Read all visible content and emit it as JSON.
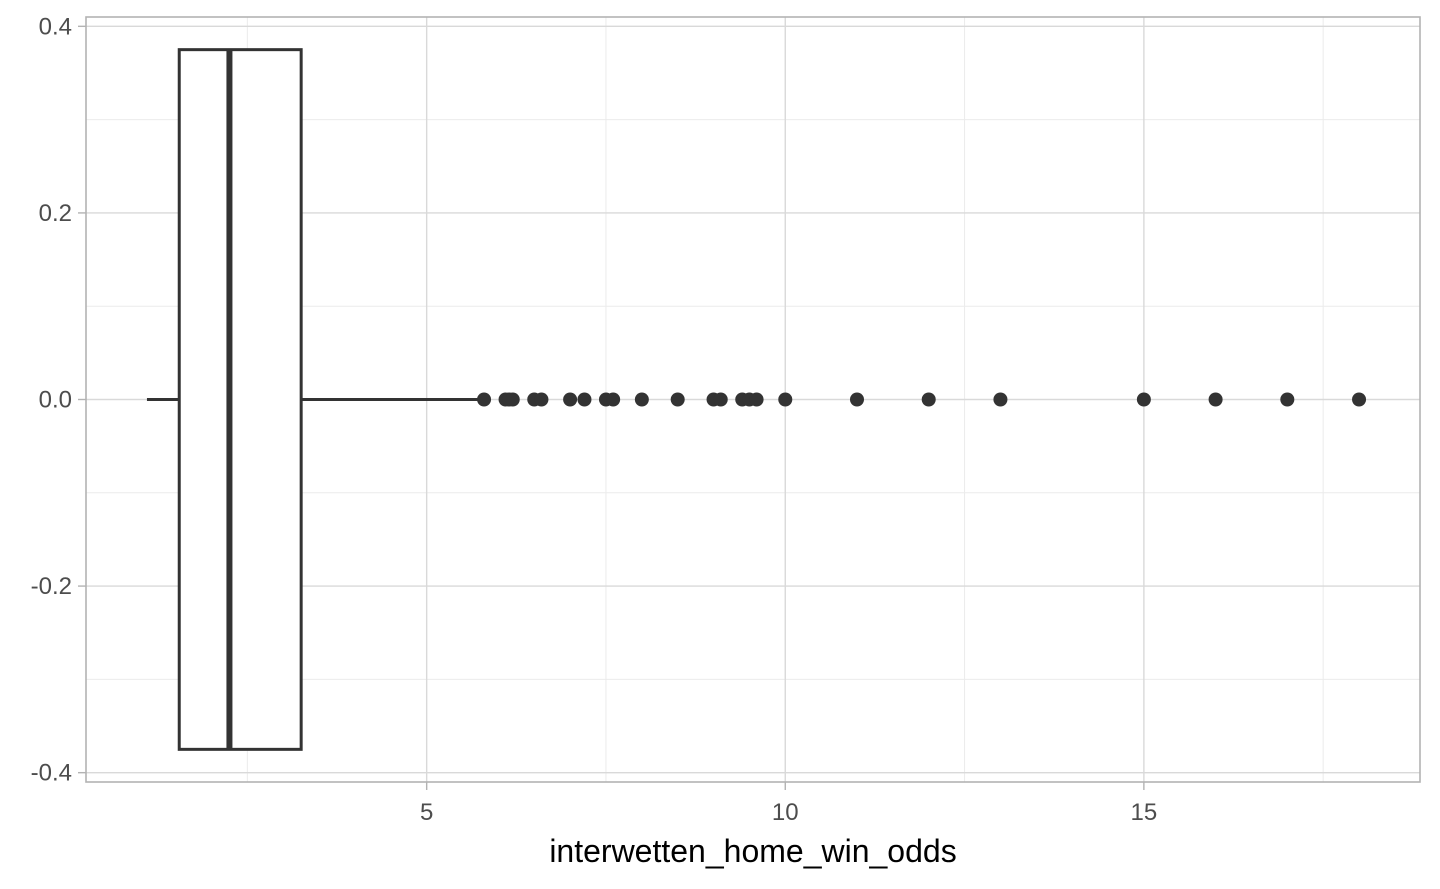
{
  "chart_data": {
    "type": "boxplot",
    "title": "",
    "xlabel": "interwetten_home_win_odds",
    "ylabel": "",
    "xlim": [
      0.25,
      18.85
    ],
    "ylim": [
      -0.41,
      0.41
    ],
    "x_ticks": [
      5,
      10,
      15
    ],
    "x_tick_labels": [
      "5",
      "10",
      "15"
    ],
    "y_ticks": [
      -0.4,
      -0.2,
      0.0,
      0.2,
      0.4
    ],
    "y_tick_labels": [
      "-0.4",
      "-0.2",
      "0.0",
      "0.2",
      "0.4"
    ],
    "x_minor_gridlines": [
      2.5,
      7.5,
      12.5,
      17.5
    ],
    "y_minor_gridlines": [
      -0.3,
      -0.1,
      0.1,
      0.3
    ],
    "grid": true,
    "box": {
      "whisker_low": 1.1,
      "q1": 1.55,
      "median": 2.25,
      "q3": 3.25,
      "whisker_high": 5.75,
      "box_ymin": -0.375,
      "box_ymax": 0.375,
      "y": 0.0
    },
    "outliers": [
      5.8,
      6.1,
      6.15,
      6.2,
      6.5,
      6.6,
      7.0,
      7.2,
      7.5,
      7.6,
      8.0,
      8.5,
      9.0,
      9.1,
      9.4,
      9.5,
      9.6,
      10.0,
      11.0,
      12.0,
      13.0,
      15.0,
      16.0,
      17.0,
      18.0
    ],
    "colors": {
      "box_outline": "#333333",
      "box_fill": "#ffffff",
      "points": "#333333",
      "grid_major": "#d9d9d9",
      "grid_minor": "#ebebeb",
      "panel_border": "#b3b3b3",
      "tick_label": "#4d4d4d",
      "axis_title": "#000000"
    }
  }
}
